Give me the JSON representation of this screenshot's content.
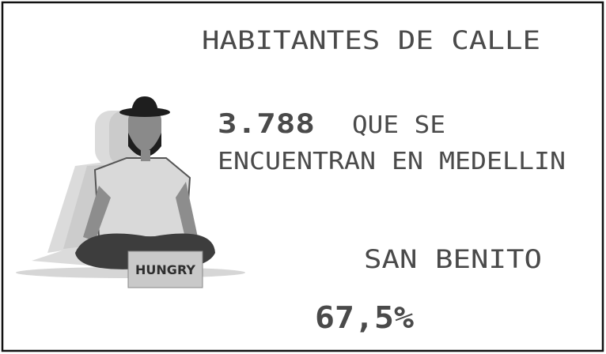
{
  "title": "HABITANTES DE CALLE",
  "count": "3.788",
  "count_text_1": "QUE SE",
  "count_text_2": "ENCUENTRAN EN MEDELLIN",
  "neighborhood": "SAN BENITO",
  "percentage": "67,5%",
  "sign": "HUNGRY"
}
